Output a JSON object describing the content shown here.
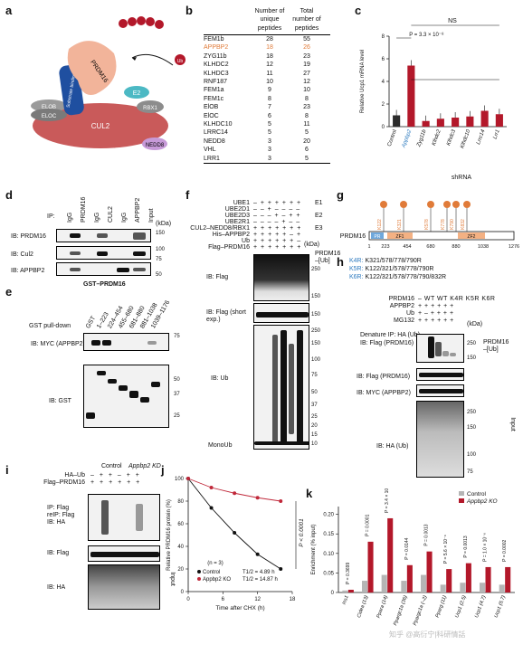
{
  "panels": {
    "a": {
      "letter": "a",
      "labels": {
        "prdm16": "PRDM16",
        "substrate_binding": "Substrate binding",
        "e2": "E2",
        "rbx1": "RBX1",
        "elob": "ELOB",
        "eloc": "ELOC",
        "cul2": "CUL2",
        "nedd8": "NEDD8",
        "ub": "Ub"
      }
    },
    "b": {
      "letter": "b",
      "col_headers": [
        "Number of unique peptides",
        "Total number of peptides"
      ],
      "rows": [
        {
          "name": "FEM1b",
          "unique": "28",
          "total": "55"
        },
        {
          "name": "APPBP2",
          "unique": "18",
          "total": "26"
        },
        {
          "name": "ZYG11b",
          "unique": "18",
          "total": "23"
        },
        {
          "name": "KLHDC2",
          "unique": "12",
          "total": "19"
        },
        {
          "name": "KLHDC3",
          "unique": "11",
          "total": "27"
        },
        {
          "name": "RNF187",
          "unique": "10",
          "total": "12"
        },
        {
          "name": "FEM1a",
          "unique": "9",
          "total": "10"
        },
        {
          "name": "FEM1c",
          "unique": "8",
          "total": "8"
        },
        {
          "name": "ElOB",
          "unique": "7",
          "total": "23"
        },
        {
          "name": "ElOC",
          "unique": "6",
          "total": "8"
        },
        {
          "name": "KLHDC10",
          "unique": "5",
          "total": "11"
        },
        {
          "name": "LRRC14",
          "unique": "5",
          "total": "5"
        },
        {
          "name": "NEDD8",
          "unique": "3",
          "total": "20"
        },
        {
          "name": "VHL",
          "unique": "3",
          "total": "6"
        },
        {
          "name": "LRR1",
          "unique": "3",
          "total": "5"
        }
      ]
    },
    "c": {
      "letter": "c",
      "ns": "NS",
      "pval": "P = 3.3 × 10⁻⁸",
      "xtitle": "shRNA",
      "color_control": "#2b2b2b",
      "color_bar": "#b3182a"
    },
    "d": {
      "letter": "d",
      "ip_label": "IP:",
      "lanes": [
        "IgG",
        "PRDM16",
        "IgG",
        "CUL2",
        "IgG",
        "APPBP2",
        "Input"
      ],
      "kda": "(kDa)",
      "rows": [
        "IB: PRDM16",
        "IB: Cul2",
        "IB: APPBP2"
      ],
      "markers": [
        "150",
        "100",
        "75",
        "50"
      ]
    },
    "e": {
      "letter": "e",
      "header": "GST–PRDM16",
      "lanes": [
        "GST",
        "1–223",
        "224–454",
        "455–680",
        "681–880",
        "881–1038",
        "1039–1176"
      ],
      "pulldown": "GST pull-down",
      "rows": [
        "IB: MYC (APPBP2)",
        "IB: GST"
      ],
      "markers": [
        "75",
        "50",
        "37",
        "25"
      ]
    },
    "f": {
      "letter": "f",
      "reagents": [
        {
          "name": "UBE1",
          "signs": "– + + + + + +",
          "group": "E1"
        },
        {
          "name": "UBE2D1",
          "signs": "– – + – – – –",
          "group": ""
        },
        {
          "name": "UBE2D3",
          "signs": "– – – + – + +",
          "group": "E2"
        },
        {
          "name": "UBE2R1",
          "signs": "– – – – + – –",
          "group": ""
        },
        {
          "name": "CUL2–NEDD8/RBX1",
          "signs": "+ + + + + + +",
          "group": "E3"
        },
        {
          "name": "His–APPBP2",
          "signs": "+ + + + + – +",
          "group": ""
        },
        {
          "name": "Ub",
          "signs": "+ + + + + + –",
          "group": ""
        },
        {
          "name": "Flag–PRDM16",
          "signs": "+ + + + + + +",
          "group": ""
        }
      ],
      "kda": "(kDa)",
      "rows": [
        "IB: Flag",
        "IB: Flag (short exp.)",
        "IB: Ub",
        "MonoUb"
      ],
      "side_label": "PRDM16 –[Ub]",
      "markers": [
        "250",
        "150",
        "150",
        "250",
        "150",
        "100",
        "75",
        "50",
        "37",
        "25",
        "20",
        "15",
        "10"
      ]
    },
    "g": {
      "letter": "g",
      "protein": "PRDM16",
      "sites": [
        "K122",
        "K321",
        "K578",
        "K778",
        "K790",
        "K832"
      ],
      "positions": [
        "1",
        "223",
        "454",
        "680",
        "880",
        "1038",
        "1276"
      ],
      "domains": [
        "PR",
        "ZF1",
        "ZF2"
      ]
    },
    "h": {
      "letter": "h",
      "mutants": [
        {
          "label": "K4R:",
          "sites": "K321/578/778/790R"
        },
        {
          "label": "K5R:",
          "sites": "K122/321/578/778/790R"
        },
        {
          "label": "K6R:",
          "sites": "K122/321/578/778/790/832R"
        }
      ],
      "reagents": [
        {
          "name": "PRDM16",
          "signs": "– WT WT K4R K5R K6R"
        },
        {
          "name": "APPBP2",
          "signs": "+ + + + + +"
        },
        {
          "name": "Ub",
          "signs": "+ – + + + +"
        },
        {
          "name": "MG132",
          "signs": "+ + + + + +"
        }
      ],
      "kda": "(kDa)",
      "rows": [
        "Denature IP: HA (Ub)",
        "IB: Flag (PRDM16)",
        "IB: Flag (PRDM16)",
        "IB: MYC (APPBP2)",
        "IB: HA (Ub)"
      ],
      "side_label": "PRDM16 –[Ub]",
      "input_label": "Input",
      "markers": [
        "250",
        "150",
        "250",
        "150",
        "100",
        "75"
      ]
    },
    "i": {
      "letter": "i",
      "groups": [
        "Control",
        "Appbp2 KD"
      ],
      "reagents": [
        {
          "name": "HA–Ub",
          "signs": "– + + – + +"
        },
        {
          "name": "Flag–PRDM16",
          "signs": "+ + + + + +"
        }
      ],
      "rows": [
        "IP: Flag",
        "reIP: Flag",
        "IB: HA",
        "IB: Flag",
        "IB: HA"
      ],
      "input_label": "Input"
    },
    "j": {
      "letter": "j",
      "ylabel": "Relative PRDM16 protein (%)",
      "xlabel": "Time after CHX (h)",
      "n": "(n = 3)",
      "legend": [
        {
          "name": "Control",
          "t": "T1/2 = 4.89 h",
          "color": "#111111"
        },
        {
          "name": "Appbp2 KO",
          "t": "T1/2 = 14.87 h",
          "color": "#c0283a"
        }
      ],
      "pval": "P < 0.0001",
      "yticks": [
        "100",
        "80",
        "60",
        "40",
        "20",
        "0"
      ],
      "xticks": [
        "0",
        "6",
        "12",
        "18"
      ]
    },
    "k": {
      "letter": "k",
      "ylabel": "Enrichment (% input)",
      "legend": [
        "Control",
        "Appbp2 KO"
      ],
      "color_control": "#b5b5b5",
      "color_ko": "#b3182a",
      "yticks": [
        "0.20",
        "0.15",
        "0.10",
        "0.05",
        "0"
      ],
      "pvals": [
        "P = 0.3699",
        "P = 0.0001",
        "P = 3.4 × 10⁻⁶",
        "P = 0.0144",
        "P = 0.0013",
        "P = 5.6 × 10⁻⁶",
        "P = 0.0013",
        "P = 1.0 × 10⁻⁶",
        "P = 0.0002"
      ],
      "categories": [
        "Ins1",
        "Cidea (13)",
        "Ppara (14)",
        "Ppargc1a (36)",
        "Ppargc1a (–2)",
        "Pparg (11)",
        "Ucp1 (2.5)",
        "Ucp1 (4.7)",
        "Ucp1 (5.7)"
      ],
      "watermark": "知乎 @高衍宁|科研情話"
    }
  },
  "chart_data": [
    {
      "type": "bar",
      "panel": "c",
      "title": "",
      "xlabel": "shRNA",
      "ylabel": "Relative Ucp1 mRNA level",
      "categories": [
        "Control",
        "Appbp2",
        "Zyg11b",
        "Klhdc2",
        "Klhdc3",
        "Klhdc10",
        "Lrrc14",
        "Lrr1"
      ],
      "values": [
        1.0,
        5.4,
        0.5,
        0.7,
        0.8,
        0.9,
        1.4,
        1.1
      ],
      "ylim": [
        0,
        8
      ],
      "yticks": [
        0,
        2,
        4,
        6,
        8
      ]
    },
    {
      "type": "line",
      "panel": "j",
      "xlabel": "Time after CHX (h)",
      "ylabel": "Relative PRDM16 protein (%)",
      "x": [
        0,
        4,
        8,
        12,
        16
      ],
      "series": [
        {
          "name": "Control",
          "values": [
            100,
            74,
            52,
            33,
            20
          ]
        },
        {
          "name": "Appbp2 KO",
          "values": [
            100,
            92,
            87,
            83,
            80
          ]
        }
      ],
      "xlim": [
        0,
        18
      ],
      "ylim": [
        0,
        100
      ]
    },
    {
      "type": "bar",
      "panel": "k",
      "ylabel": "Enrichment (% input)",
      "categories": [
        "Ins1",
        "Cidea (13)",
        "Ppara (14)",
        "Ppargc1a (36)",
        "Ppargc1a (–2)",
        "Pparg (11)",
        "Ucp1 (2.5)",
        "Ucp1 (4.7)",
        "Ucp1 (5.7)"
      ],
      "series": [
        {
          "name": "Control",
          "values": [
            0.005,
            0.03,
            0.045,
            0.03,
            0.045,
            0.02,
            0.025,
            0.025,
            0.02
          ]
        },
        {
          "name": "Appbp2 KO",
          "values": [
            0.007,
            0.13,
            0.19,
            0.07,
            0.105,
            0.06,
            0.075,
            0.065,
            0.065
          ]
        }
      ],
      "ylim": [
        0,
        0.22
      ]
    }
  ]
}
